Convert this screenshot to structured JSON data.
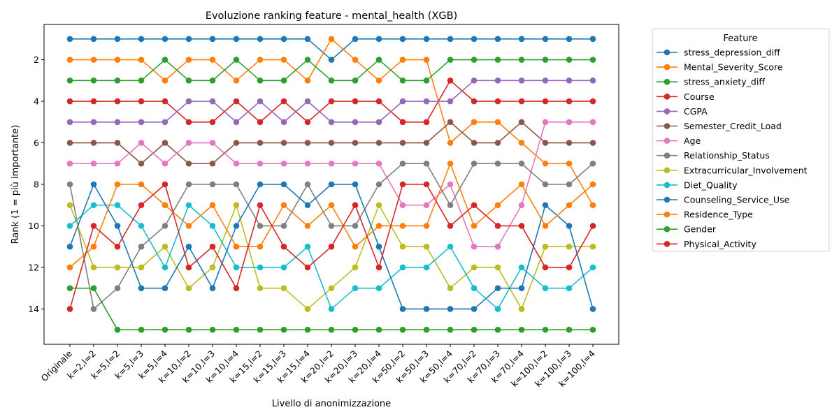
{
  "chart_data": {
    "type": "line",
    "title": "Evoluzione ranking feature - mental_health (XGB)",
    "xlabel": "Livello di anonimizzazione",
    "ylabel": "Rank (1 = più importante)",
    "ylim": [
      15.7,
      0.3
    ],
    "yticks": [
      2,
      4,
      6,
      8,
      10,
      12,
      14
    ],
    "y_inverted": true,
    "grid": false,
    "legend_title": "Feature",
    "legend_position": "outside-right",
    "categories": [
      "Originale",
      "k=2,l=2",
      "k=5,l=2",
      "k=5,l=3",
      "k=5,l=4",
      "k=10,l=2",
      "k=10,l=3",
      "k=10,l=4",
      "k=15,l=2",
      "k=15,l=3",
      "k=15,l=4",
      "k=20,l=2",
      "k=20,l=3",
      "k=20,l=4",
      "k=50,l=2",
      "k=50,l=3",
      "k=50,l=4",
      "k=70,l=2",
      "k=70,l=3",
      "k=70,l=4",
      "k=100,l=2",
      "k=100,l=3",
      "k=100,l=4"
    ],
    "series": [
      {
        "name": "stress_depression_diff",
        "color": "#1f77b4",
        "values": [
          1,
          1,
          1,
          1,
          1,
          1,
          1,
          1,
          1,
          1,
          1,
          2,
          1,
          1,
          1,
          1,
          1,
          1,
          1,
          1,
          1,
          1,
          1
        ]
      },
      {
        "name": "Mental_Severity_Score",
        "color": "#ff7f0e",
        "values": [
          2,
          2,
          2,
          2,
          3,
          2,
          2,
          3,
          2,
          2,
          3,
          1,
          2,
          3,
          2,
          2,
          6,
          5,
          5,
          6,
          7,
          7,
          9
        ]
      },
      {
        "name": "stress_anxiety_diff",
        "color": "#2ca02c",
        "values": [
          3,
          3,
          3,
          3,
          2,
          3,
          3,
          2,
          3,
          3,
          2,
          3,
          3,
          2,
          3,
          3,
          2,
          2,
          2,
          2,
          2,
          2,
          2
        ]
      },
      {
        "name": "Course",
        "color": "#d62728",
        "values": [
          4,
          4,
          4,
          4,
          4,
          5,
          5,
          4,
          5,
          4,
          5,
          4,
          4,
          4,
          5,
          5,
          3,
          4,
          4,
          4,
          4,
          4,
          4
        ]
      },
      {
        "name": "CGPA",
        "color": "#9467bd",
        "values": [
          5,
          5,
          5,
          5,
          5,
          4,
          4,
          5,
          4,
          5,
          4,
          5,
          5,
          5,
          4,
          4,
          4,
          3,
          3,
          3,
          3,
          3,
          3
        ]
      },
      {
        "name": "Semester_Credit_Load",
        "color": "#8c564b",
        "values": [
          6,
          6,
          6,
          7,
          6,
          7,
          7,
          6,
          6,
          6,
          6,
          6,
          6,
          6,
          6,
          6,
          5,
          6,
          6,
          5,
          6,
          6,
          6
        ]
      },
      {
        "name": "Age",
        "color": "#e377c2",
        "values": [
          7,
          7,
          7,
          6,
          7,
          6,
          6,
          7,
          7,
          7,
          7,
          7,
          7,
          7,
          9,
          9,
          8,
          11,
          11,
          9,
          5,
          5,
          5
        ]
      },
      {
        "name": "Relationship_Status",
        "color": "#7f7f7f",
        "values": [
          8,
          14,
          13,
          11,
          10,
          8,
          8,
          8,
          10,
          10,
          8,
          10,
          10,
          8,
          7,
          7,
          9,
          7,
          7,
          7,
          8,
          8,
          7
        ]
      },
      {
        "name": "Extracurricular_Involvement",
        "color": "#bcbd22",
        "values": [
          9,
          12,
          12,
          12,
          11,
          13,
          12,
          9,
          13,
          13,
          14,
          13,
          12,
          9,
          11,
          11,
          13,
          12,
          12,
          14,
          11,
          11,
          11
        ]
      },
      {
        "name": "Diet_Quality",
        "color": "#17becf",
        "values": [
          10,
          9,
          9,
          10,
          12,
          9,
          10,
          12,
          12,
          12,
          11,
          14,
          13,
          13,
          12,
          12,
          11,
          13,
          14,
          12,
          13,
          13,
          12
        ]
      },
      {
        "name": "Counseling_Service_Use",
        "color": "#1f77b4",
        "values": [
          11,
          8,
          10,
          13,
          13,
          11,
          13,
          10,
          8,
          8,
          9,
          8,
          8,
          11,
          14,
          14,
          14,
          14,
          13,
          13,
          9,
          10,
          14
        ]
      },
      {
        "name": "Residence_Type",
        "color": "#ff7f0e",
        "values": [
          12,
          11,
          8,
          8,
          9,
          10,
          9,
          11,
          11,
          9,
          10,
          9,
          11,
          10,
          10,
          10,
          7,
          10,
          9,
          8,
          10,
          9,
          8
        ]
      },
      {
        "name": "Gender",
        "color": "#2ca02c",
        "values": [
          13,
          13,
          15,
          15,
          15,
          15,
          15,
          15,
          15,
          15,
          15,
          15,
          15,
          15,
          15,
          15,
          15,
          15,
          15,
          15,
          15,
          15,
          15
        ]
      },
      {
        "name": "Physical_Activity",
        "color": "#d62728",
        "values": [
          14,
          10,
          11,
          9,
          8,
          12,
          11,
          13,
          9,
          11,
          12,
          11,
          9,
          12,
          8,
          8,
          10,
          9,
          10,
          10,
          12,
          12,
          10
        ]
      }
    ]
  }
}
